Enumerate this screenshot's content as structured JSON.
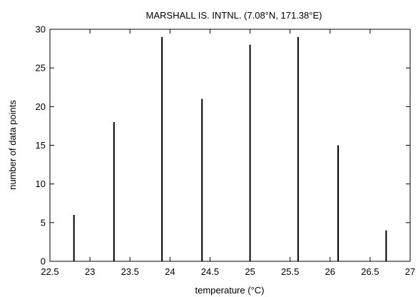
{
  "chart_data": {
    "type": "bar",
    "title": "MARSHALL IS. INTNL. (7.08°N, 171.38°E)",
    "xlabel": "temperature (°C)",
    "ylabel": "number of data points",
    "xlim": [
      22.5,
      27
    ],
    "ylim": [
      0,
      30
    ],
    "xticks": [
      22.5,
      23,
      23.5,
      24,
      24.5,
      25,
      25.5,
      26,
      26.5,
      27
    ],
    "xtick_labels": [
      "22.5",
      "23",
      "23.5",
      "24",
      "24.5",
      "25",
      "25.5",
      "26",
      "26.5",
      "27"
    ],
    "yticks": [
      0,
      5,
      10,
      15,
      20,
      25,
      30
    ],
    "ytick_labels": [
      "0",
      "5",
      "10",
      "15",
      "20",
      "25",
      "30"
    ],
    "x": [
      22.8,
      23.3,
      23.9,
      24.4,
      25.0,
      25.6,
      26.1,
      26.7
    ],
    "values": [
      6,
      18,
      29,
      21,
      28,
      29,
      15,
      4
    ],
    "grid": false,
    "legend": "none"
  }
}
